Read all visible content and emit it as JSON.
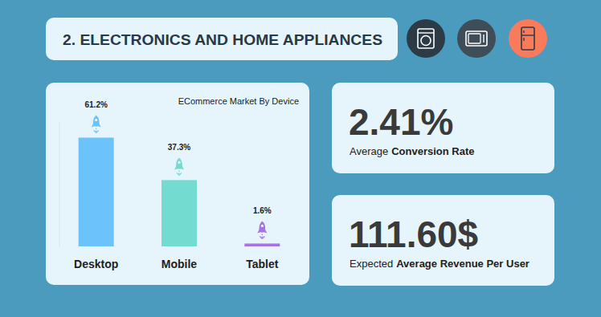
{
  "header": {
    "title": "2. ELECTRONICS AND HOME APPLIANCES"
  },
  "chart_data": {
    "type": "bar",
    "title": "ECommerce Market By Device",
    "categories": [
      "Desktop",
      "Mobile",
      "Tablet"
    ],
    "values": [
      61.2,
      37.3,
      1.6
    ],
    "value_labels": [
      "61.2%",
      "37.3%",
      "1.6%"
    ],
    "colors": [
      "#6cc3fb",
      "#74dbd1",
      "#a772e6"
    ],
    "ylim": [
      0,
      70
    ],
    "data_labels": true,
    "tick_labels": "x"
  },
  "stats": [
    {
      "value": "2.41%",
      "label_plain": "Average",
      "label_bold": "Conversion Rate"
    },
    {
      "value": "111.60$",
      "label_plain": "Expected",
      "label_bold": "Average Revenue Per User"
    }
  ]
}
